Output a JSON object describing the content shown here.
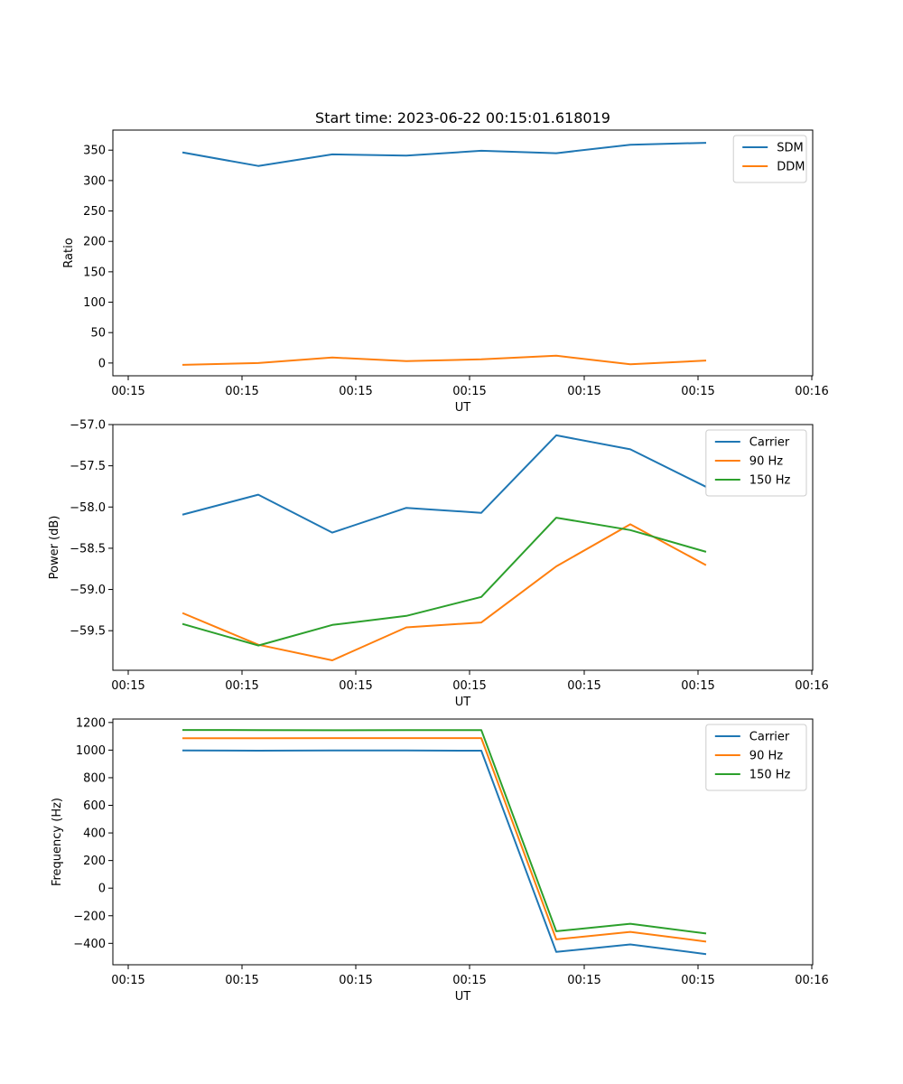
{
  "figure": {
    "title": "Start time: 2023-06-22 00:15:01.618019"
  },
  "chart_data": [
    {
      "type": "line",
      "xlabel": "UT",
      "ylabel": "Ratio",
      "x_tick_labels": [
        "00:15",
        "00:15",
        "00:15",
        "00:15",
        "00:15",
        "00:15",
        "00:16"
      ],
      "y_ticks": [
        0,
        50,
        100,
        150,
        200,
        250,
        300,
        350
      ],
      "ylim": [
        -21,
        383
      ],
      "legend_placement": "upper right",
      "series": [
        {
          "name": "SDM",
          "color": "#1f77b4",
          "values": [
            346,
            324,
            343,
            341,
            349,
            345,
            359,
            362
          ]
        },
        {
          "name": "DDM",
          "color": "#ff7f0e",
          "values": [
            -3,
            0,
            9,
            3,
            6,
            12,
            -2,
            4
          ]
        }
      ]
    },
    {
      "type": "line",
      "xlabel": "UT",
      "ylabel": "Power (dB)",
      "x_tick_labels": [
        "00:15",
        "00:15",
        "00:15",
        "00:15",
        "00:15",
        "00:15",
        "00:16"
      ],
      "y_ticks": [
        -57.0,
        -57.5,
        -58.0,
        -58.5,
        -59.0,
        -59.5
      ],
      "y_tick_labels": [
        "−57.0",
        "−57.5",
        "−58.0",
        "−58.5",
        "−59.0",
        "−59.5"
      ],
      "ylim": [
        -59.98,
        -57.0
      ],
      "legend_placement": "upper right",
      "series": [
        {
          "name": "Carrier",
          "color": "#1f77b4",
          "values": [
            -58.09,
            -57.85,
            -58.31,
            -58.01,
            -58.07,
            -57.13,
            -57.3,
            -57.75
          ]
        },
        {
          "name": "90 Hz",
          "color": "#ff7f0e",
          "values": [
            -59.29,
            -59.67,
            -59.86,
            -59.46,
            -59.4,
            -58.72,
            -58.21,
            -58.7
          ]
        },
        {
          "name": "150 Hz",
          "color": "#2ca02c",
          "values": [
            -59.42,
            -59.68,
            -59.43,
            -59.32,
            -59.09,
            -58.13,
            -58.28,
            -58.54
          ]
        }
      ]
    },
    {
      "type": "line",
      "xlabel": "UT",
      "ylabel": "Frequency (Hz)",
      "x_tick_labels": [
        "00:15",
        "00:15",
        "00:15",
        "00:15",
        "00:15",
        "00:15",
        "00:16"
      ],
      "y_ticks": [
        -400,
        -200,
        0,
        200,
        400,
        600,
        800,
        1000,
        1200
      ],
      "y_tick_labels": [
        "−400",
        "−200",
        "0",
        "200",
        "400",
        "600",
        "800",
        "1000",
        "1200"
      ],
      "ylim": [
        -555,
        1225
      ],
      "legend_placement": "upper right",
      "series": [
        {
          "name": "Carrier",
          "color": "#1f77b4",
          "values": [
            997,
            996,
            998,
            997,
            996,
            -462,
            -408,
            -477
          ]
        },
        {
          "name": "90 Hz",
          "color": "#ff7f0e",
          "values": [
            1086,
            1086,
            1087,
            1087,
            1087,
            -371,
            -317,
            -386
          ]
        },
        {
          "name": "150 Hz",
          "color": "#2ca02c",
          "values": [
            1146,
            1145,
            1144,
            1145,
            1145,
            -312,
            -258,
            -328
          ]
        }
      ]
    }
  ]
}
